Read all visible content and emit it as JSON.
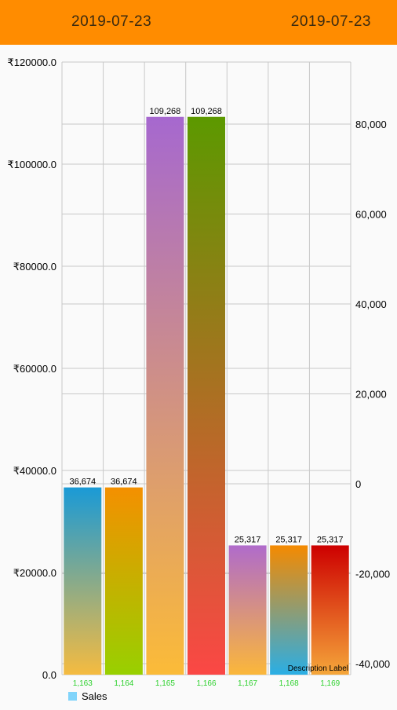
{
  "header": {
    "date_left": "2019-07-23",
    "date_right": "2019-07-23"
  },
  "chart_data": {
    "type": "bar",
    "categories": [
      "1,163",
      "1,164",
      "1,165",
      "1,166",
      "1,167",
      "1,168",
      "1,169"
    ],
    "values": [
      36674,
      36674,
      109268,
      109268,
      25317,
      25317,
      25317
    ],
    "value_labels": [
      "36,674",
      "36,674",
      "109,268",
      "109,268",
      "25,317",
      "25,317",
      "25,317"
    ],
    "left_axis": {
      "ticks": [
        0,
        20000,
        40000,
        60000,
        80000,
        100000,
        120000
      ],
      "tick_labels": [
        "0.0",
        "₹20000.0",
        "₹40000.0",
        "₹60000.0",
        "₹80000.0",
        "₹100000.0",
        "₹120000.0"
      ],
      "ylim": [
        0,
        120000
      ]
    },
    "right_axis": {
      "ticks": [
        -40000,
        -20000,
        0,
        20000,
        40000,
        60000,
        80000
      ],
      "tick_labels": [
        "-40,000",
        "-20,000",
        "0",
        "20,000",
        "40,000",
        "60,000",
        "80,000"
      ]
    },
    "legend": {
      "position": "bottom-left",
      "entries": [
        {
          "label": "Sales",
          "color": "#81d4fa"
        }
      ]
    },
    "description": "Description Label",
    "grid": true,
    "bar_gradients": [
      [
        "#1a9ad6",
        "#f5bb40"
      ],
      [
        "#f49000",
        "#98d000"
      ],
      [
        "#a668cf",
        "#fbbb38"
      ],
      [
        "#5c9900",
        "#fb4745"
      ],
      [
        "#b06bcb",
        "#fbb73a"
      ],
      [
        "#f58a00",
        "#2aaee5"
      ],
      [
        "#cd0000",
        "#f5a63a"
      ]
    ],
    "colors": {
      "category_label": "#2ed12e",
      "axis_text": "#000000",
      "grid": "#c8c8c8"
    }
  }
}
